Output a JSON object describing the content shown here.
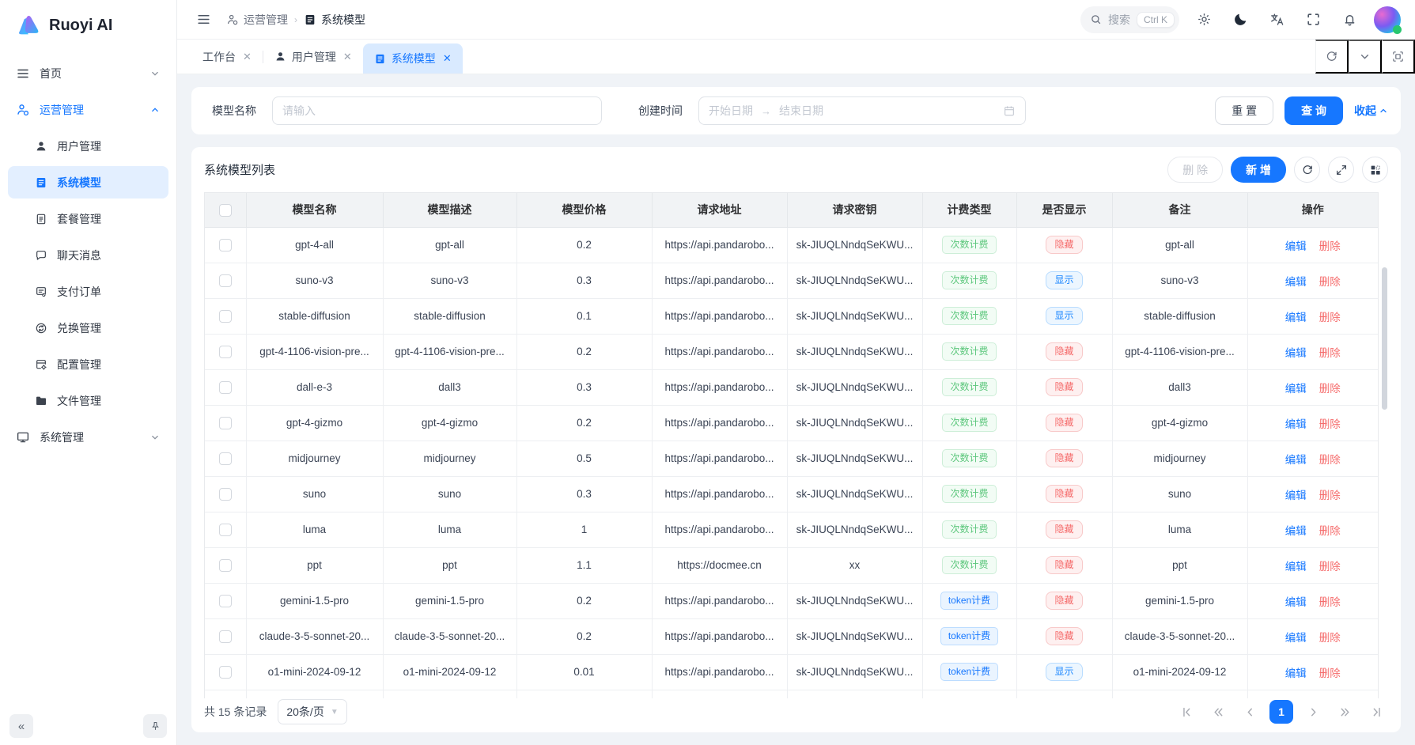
{
  "app": {
    "name": "Ruoyi AI"
  },
  "colors": {
    "primary": "#1677ff",
    "success": "#5cc77c",
    "danger": "#f56c6c"
  },
  "sidebar": {
    "items": [
      {
        "label": "首页",
        "icon": "menu",
        "level": "root",
        "chevron": "down"
      },
      {
        "label": "运营管理",
        "icon": "operate",
        "level": "root",
        "chevron": "up",
        "highlight": true
      },
      {
        "label": "用户管理",
        "icon": "user",
        "level": "child"
      },
      {
        "label": "系统模型",
        "icon": "doc-filled",
        "level": "child",
        "active": true
      },
      {
        "label": "套餐管理",
        "icon": "package",
        "level": "child"
      },
      {
        "label": "聊天消息",
        "icon": "chat",
        "level": "child"
      },
      {
        "label": "支付订单",
        "icon": "order",
        "level": "child"
      },
      {
        "label": "兑换管理",
        "icon": "exchange",
        "level": "child"
      },
      {
        "label": "配置管理",
        "icon": "config",
        "level": "child"
      },
      {
        "label": "文件管理",
        "icon": "folder",
        "level": "child"
      },
      {
        "label": "系统管理",
        "icon": "monitor",
        "level": "root",
        "chevron": "down"
      }
    ]
  },
  "topbar": {
    "breadcrumb": [
      {
        "label": "运营管理",
        "icon": "operate"
      },
      {
        "label": "系统模型",
        "icon": "doc-filled"
      }
    ],
    "search_placeholder": "搜索",
    "search_shortcut": "Ctrl K"
  },
  "tabbar": {
    "tabs": [
      {
        "label": "工作台"
      },
      {
        "label": "用户管理",
        "icon": "user"
      },
      {
        "label": "系统模型",
        "icon": "doc-filled",
        "active": true
      }
    ]
  },
  "filter": {
    "name_label": "模型名称",
    "name_placeholder": "请输入",
    "date_label": "创建时间",
    "start_placeholder": "开始日期",
    "end_placeholder": "结束日期",
    "reset_label": "重 置",
    "search_label": "查 询",
    "collapse_label": "收起"
  },
  "table": {
    "title": "系统模型列表",
    "delete_button": "删 除",
    "add_button": "新 增",
    "edit_label": "编辑",
    "delete_label": "删除",
    "columns": [
      "模型名称",
      "模型描述",
      "模型价格",
      "请求地址",
      "请求密钥",
      "计费类型",
      "是否显示",
      "备注",
      "操作"
    ],
    "rows": [
      {
        "name": "gpt-4-all",
        "desc": "gpt-all",
        "price": "0.2",
        "url": "https://api.pandarobo...",
        "key": "sk-JIUQLNndqSeKWU...",
        "billing": "次数计费",
        "billing_type": "count",
        "visible": "隐藏",
        "remark": "gpt-all"
      },
      {
        "name": "suno-v3",
        "desc": "suno-v3",
        "price": "0.3",
        "url": "https://api.pandarobo...",
        "key": "sk-JIUQLNndqSeKWU...",
        "billing": "次数计费",
        "billing_type": "count",
        "visible": "显示",
        "remark": "suno-v3"
      },
      {
        "name": "stable-diffusion",
        "desc": "stable-diffusion",
        "price": "0.1",
        "url": "https://api.pandarobo...",
        "key": "sk-JIUQLNndqSeKWU...",
        "billing": "次数计费",
        "billing_type": "count",
        "visible": "显示",
        "remark": "stable-diffusion"
      },
      {
        "name": "gpt-4-1106-vision-pre...",
        "desc": "gpt-4-1106-vision-pre...",
        "price": "0.2",
        "url": "https://api.pandarobo...",
        "key": "sk-JIUQLNndqSeKWU...",
        "billing": "次数计费",
        "billing_type": "count",
        "visible": "隐藏",
        "remark": "gpt-4-1106-vision-pre..."
      },
      {
        "name": "dall-e-3",
        "desc": "dall3",
        "price": "0.3",
        "url": "https://api.pandarobo...",
        "key": "sk-JIUQLNndqSeKWU...",
        "billing": "次数计费",
        "billing_type": "count",
        "visible": "隐藏",
        "remark": "dall3"
      },
      {
        "name": "gpt-4-gizmo",
        "desc": "gpt-4-gizmo",
        "price": "0.2",
        "url": "https://api.pandarobo...",
        "key": "sk-JIUQLNndqSeKWU...",
        "billing": "次数计费",
        "billing_type": "count",
        "visible": "隐藏",
        "remark": "gpt-4-gizmo"
      },
      {
        "name": "midjourney",
        "desc": "midjourney",
        "price": "0.5",
        "url": "https://api.pandarobo...",
        "key": "sk-JIUQLNndqSeKWU...",
        "billing": "次数计费",
        "billing_type": "count",
        "visible": "隐藏",
        "remark": "midjourney"
      },
      {
        "name": "suno",
        "desc": "suno",
        "price": "0.3",
        "url": "https://api.pandarobo...",
        "key": "sk-JIUQLNndqSeKWU...",
        "billing": "次数计费",
        "billing_type": "count",
        "visible": "隐藏",
        "remark": "suno"
      },
      {
        "name": "luma",
        "desc": "luma",
        "price": "1",
        "url": "https://api.pandarobo...",
        "key": "sk-JIUQLNndqSeKWU...",
        "billing": "次数计费",
        "billing_type": "count",
        "visible": "隐藏",
        "remark": "luma"
      },
      {
        "name": "ppt",
        "desc": "ppt",
        "price": "1.1",
        "url": "https://docmee.cn",
        "key": "xx",
        "billing": "次数计费",
        "billing_type": "count",
        "visible": "隐藏",
        "remark": "ppt"
      },
      {
        "name": "gemini-1.5-pro",
        "desc": "gemini-1.5-pro",
        "price": "0.2",
        "url": "https://api.pandarobo...",
        "key": "sk-JIUQLNndqSeKWU...",
        "billing": "token计费",
        "billing_type": "token",
        "visible": "隐藏",
        "remark": "gemini-1.5-pro"
      },
      {
        "name": "claude-3-5-sonnet-20...",
        "desc": "claude-3-5-sonnet-20...",
        "price": "0.2",
        "url": "https://api.pandarobo...",
        "key": "sk-JIUQLNndqSeKWU...",
        "billing": "token计费",
        "billing_type": "token",
        "visible": "隐藏",
        "remark": "claude-3-5-sonnet-20..."
      },
      {
        "name": "o1-mini-2024-09-12",
        "desc": "o1-mini-2024-09-12",
        "price": "0.01",
        "url": "https://api.pandarobo...",
        "key": "sk-JIUQLNndqSeKWU...",
        "billing": "token计费",
        "billing_type": "token",
        "visible": "显示",
        "remark": "o1-mini-2024-09-12"
      }
    ]
  },
  "pagination": {
    "total_text": "共 15 条记录",
    "page_size": "20条/页",
    "current_page": "1"
  }
}
